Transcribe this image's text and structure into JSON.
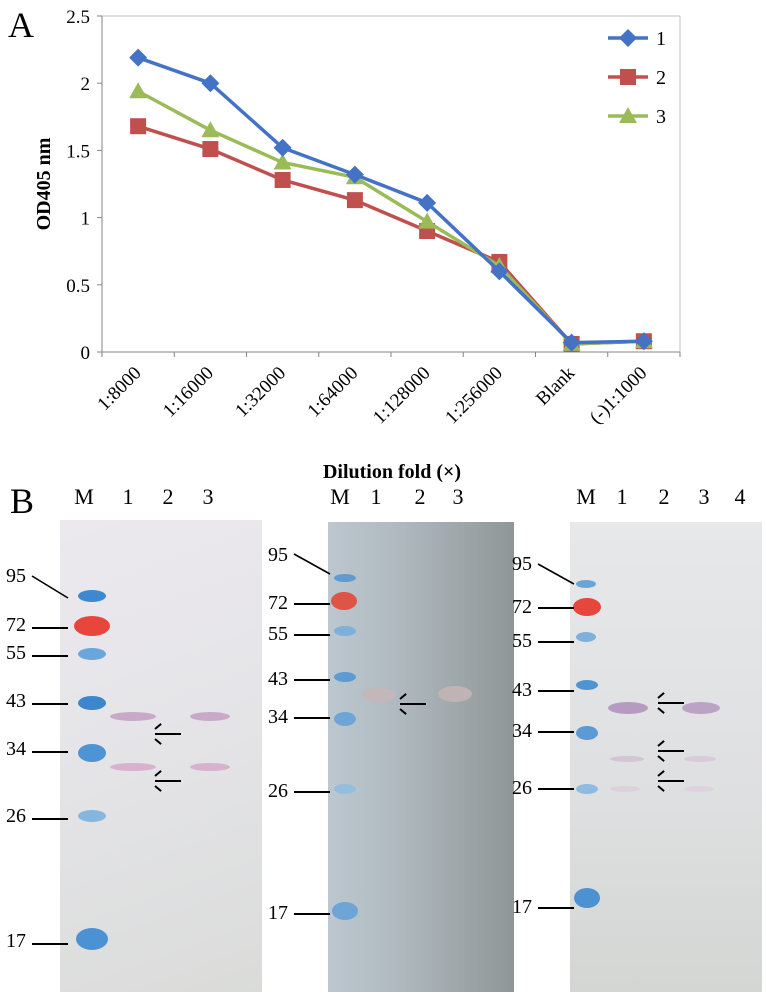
{
  "panel_a_label": "A",
  "panel_b_label": "B",
  "chart_data": {
    "type": "line",
    "categories": [
      "1:8000",
      "1:16000",
      "1:32000",
      "1:64000",
      "1:128000",
      "1:256000",
      "Blank",
      "(-)1:1000"
    ],
    "series": [
      {
        "name": "1",
        "color": "#4472C4",
        "marker": "diamond",
        "values": [
          2.19,
          2.0,
          1.52,
          1.32,
          1.11,
          0.6,
          0.07,
          0.08
        ]
      },
      {
        "name": "2",
        "color": "#C0504D",
        "marker": "square",
        "values": [
          1.68,
          1.51,
          1.28,
          1.13,
          0.9,
          0.67,
          0.06,
          0.08
        ]
      },
      {
        "name": "3",
        "color": "#9BBB59",
        "marker": "triangle",
        "values": [
          1.94,
          1.65,
          1.41,
          1.3,
          0.97,
          0.64,
          0.06,
          0.08
        ]
      }
    ],
    "ylabel": "OD405 nm",
    "xlabel": "Dilution fold (×)",
    "ylim": [
      0,
      2.5
    ],
    "yticks": [
      "0",
      "0.5",
      "1",
      "1.5",
      "2",
      "2.5"
    ],
    "legend_position": "top-right",
    "grid": false
  },
  "blots": [
    {
      "lanes": [
        "M",
        "1",
        "2",
        "3"
      ],
      "markers": [
        "95",
        "72",
        "55",
        "43",
        "34",
        "26",
        "17"
      ],
      "arrows": 2
    },
    {
      "lanes": [
        "M",
        "1",
        "2",
        "3"
      ],
      "markers": [
        "95",
        "72",
        "55",
        "43",
        "34",
        "26",
        "17"
      ],
      "arrows": 1
    },
    {
      "lanes": [
        "M",
        "1",
        "2",
        "3",
        "4"
      ],
      "markers": [
        "95",
        "72",
        "55",
        "43",
        "34",
        "26",
        "17"
      ],
      "arrows": 3
    }
  ]
}
